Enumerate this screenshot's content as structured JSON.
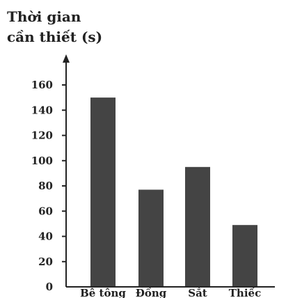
{
  "chart_data": {
    "type": "bar",
    "ylabel_lines": [
      "Thời gian",
      "cần thiết (s)"
    ],
    "xlabel": "",
    "categories": [
      "Bê tông",
      "Đồng",
      "Sắt",
      "Thiếc"
    ],
    "values": [
      150,
      77,
      95,
      49
    ],
    "yticks": [
      0,
      20,
      40,
      60,
      80,
      100,
      120,
      140,
      160
    ],
    "ylim": [
      0,
      180
    ],
    "grid": false,
    "bar_color": "#444444",
    "axis_color": "#222222"
  }
}
